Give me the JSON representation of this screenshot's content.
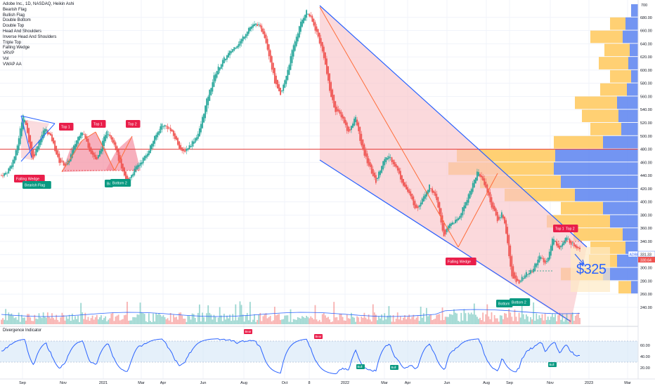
{
  "header": {
    "title": "Adobe Inc., 1D, NASDAQ, Heikin Ashi",
    "indicators": [
      "Bearish Flag",
      "Bullish Flag",
      "Double Bottom",
      "Double Top",
      "Head And Shoulders",
      "Inverse Head And Shoulders",
      "Triple Top",
      "Falling Wedge",
      "VRVP",
      "Vol",
      "VWAP AA"
    ]
  },
  "price_axis": {
    "ticks": [
      "680.00",
      "660.00",
      "640.00",
      "620.00",
      "600.00",
      "580.00",
      "560.00",
      "540.00",
      "520.00",
      "500.00",
      "480.00",
      "460.00",
      "440.00",
      "420.00",
      "400.00",
      "380.00",
      "360.00",
      "340.00",
      "320.00",
      "300.00",
      "280.00",
      "260.00",
      "240.00"
    ],
    "partial_top": "700",
    "symbol_badge": "ADBE",
    "last_price": "331.33",
    "price_tag_2": "330.64"
  },
  "time_axis": {
    "labels": [
      "Sep",
      "Nov",
      "2021",
      "Mar",
      "Apr",
      "Jun",
      "Aug",
      "Oct",
      "8",
      "2022",
      "Mar",
      "Apr",
      "Jun",
      "Aug",
      "Sep",
      "Nov",
      "2023",
      "Mar"
    ]
  },
  "annotations": {
    "target": "$325",
    "pattern_labels": [
      "Falling Wedge",
      "Bearish Flag",
      "Top 1",
      "Top 1",
      "Top 2",
      "Bo",
      "Bottom 2",
      "Falling Wedge",
      "Top 1",
      "Top 2",
      "Bottom",
      "Bottom 2"
    ]
  },
  "oscillator": {
    "title": "Divergence Indicator",
    "ticks": [
      "60.00",
      "40.00",
      "20.00"
    ],
    "labels": [
      "Bear",
      "Bear",
      "Bull",
      "Bull",
      "Bull"
    ]
  },
  "colors": {
    "bull": "#26a69a",
    "bear": "#ef5350",
    "pattern_fill": "#f9c5c9",
    "trendline": "#2962ff",
    "hline": "#e53935",
    "vp_up": "#ffc85a",
    "vp_down": "#5b83f0",
    "label_red": "#e91e4a",
    "label_teal": "#089981"
  },
  "chart_data": {
    "type": "candlestick",
    "title": "Adobe Inc., 1D, NASDAQ, Heikin Ashi",
    "ylim": [
      225,
      700
    ],
    "horizontal_line": 480,
    "points": [
      {
        "t": 0.0,
        "price": 440
      },
      {
        "t": 0.8,
        "price": 445
      },
      {
        "t": 1.6,
        "price": 460
      },
      {
        "t": 2.2,
        "price": 478
      },
      {
        "t": 3.2,
        "price": 535
      },
      {
        "t": 4.0,
        "price": 495
      },
      {
        "t": 4.6,
        "price": 462
      },
      {
        "t": 5.4,
        "price": 490
      },
      {
        "t": 6.4,
        "price": 512
      },
      {
        "t": 7.4,
        "price": 495
      },
      {
        "t": 8.4,
        "price": 462
      },
      {
        "t": 9.6,
        "price": 455
      },
      {
        "t": 10.8,
        "price": 488
      },
      {
        "t": 11.8,
        "price": 510
      },
      {
        "t": 13.0,
        "price": 478
      },
      {
        "t": 14.0,
        "price": 462
      },
      {
        "t": 15.5,
        "price": 510
      },
      {
        "t": 16.6,
        "price": 488
      },
      {
        "t": 17.6,
        "price": 450
      },
      {
        "t": 18.4,
        "price": 430
      },
      {
        "t": 19.0,
        "price": 440
      },
      {
        "t": 20.0,
        "price": 455
      },
      {
        "t": 21.2,
        "price": 470
      },
      {
        "t": 22.4,
        "price": 495
      },
      {
        "t": 23.6,
        "price": 518
      },
      {
        "t": 24.6,
        "price": 512
      },
      {
        "t": 25.6,
        "price": 495
      },
      {
        "t": 26.6,
        "price": 474
      },
      {
        "t": 27.8,
        "price": 487
      },
      {
        "t": 29.0,
        "price": 505
      },
      {
        "t": 30.2,
        "price": 555
      },
      {
        "t": 31.4,
        "price": 595
      },
      {
        "t": 32.6,
        "price": 615
      },
      {
        "t": 34.0,
        "price": 632
      },
      {
        "t": 35.2,
        "price": 645
      },
      {
        "t": 36.4,
        "price": 665
      },
      {
        "t": 37.6,
        "price": 670
      },
      {
        "t": 38.6,
        "price": 655
      },
      {
        "t": 39.4,
        "price": 620
      },
      {
        "t": 40.2,
        "price": 580
      },
      {
        "t": 41.0,
        "price": 560
      },
      {
        "t": 42.0,
        "price": 598
      },
      {
        "t": 43.0,
        "price": 640
      },
      {
        "t": 44.0,
        "price": 672
      },
      {
        "t": 44.8,
        "price": 690
      },
      {
        "t": 45.4,
        "price": 680
      },
      {
        "t": 46.4,
        "price": 655
      },
      {
        "t": 47.4,
        "price": 620
      },
      {
        "t": 48.2,
        "price": 570
      },
      {
        "t": 49.0,
        "price": 540
      },
      {
        "t": 50.0,
        "price": 530
      },
      {
        "t": 51.0,
        "price": 505
      },
      {
        "t": 52.0,
        "price": 530
      },
      {
        "t": 53.0,
        "price": 480
      },
      {
        "t": 54.0,
        "price": 455
      },
      {
        "t": 55.0,
        "price": 430
      },
      {
        "t": 56.0,
        "price": 460
      },
      {
        "t": 57.0,
        "price": 470
      },
      {
        "t": 58.0,
        "price": 452
      },
      {
        "t": 59.0,
        "price": 428
      },
      {
        "t": 60.0,
        "price": 410
      },
      {
        "t": 61.0,
        "price": 388
      },
      {
        "t": 62.0,
        "price": 410
      },
      {
        "t": 63.0,
        "price": 425
      },
      {
        "t": 64.0,
        "price": 400
      },
      {
        "t": 65.0,
        "price": 348
      },
      {
        "t": 66.0,
        "price": 368
      },
      {
        "t": 67.0,
        "price": 372
      },
      {
        "t": 68.0,
        "price": 395
      },
      {
        "t": 69.0,
        "price": 420
      },
      {
        "t": 70.0,
        "price": 447
      },
      {
        "t": 71.0,
        "price": 428
      },
      {
        "t": 72.0,
        "price": 395
      },
      {
        "t": 73.0,
        "price": 370
      },
      {
        "t": 73.6,
        "price": 385
      },
      {
        "t": 74.2,
        "price": 352
      },
      {
        "t": 75.0,
        "price": 285
      },
      {
        "t": 76.0,
        "price": 278
      },
      {
        "t": 77.0,
        "price": 290
      },
      {
        "t": 78.0,
        "price": 295
      },
      {
        "t": 79.0,
        "price": 318
      },
      {
        "t": 80.0,
        "price": 305
      },
      {
        "t": 81.0,
        "price": 345
      },
      {
        "t": 82.0,
        "price": 330
      },
      {
        "t": 83.0,
        "price": 345
      },
      {
        "t": 84.0,
        "price": 335
      },
      {
        "t": 85.0,
        "price": 330
      }
    ]
  }
}
